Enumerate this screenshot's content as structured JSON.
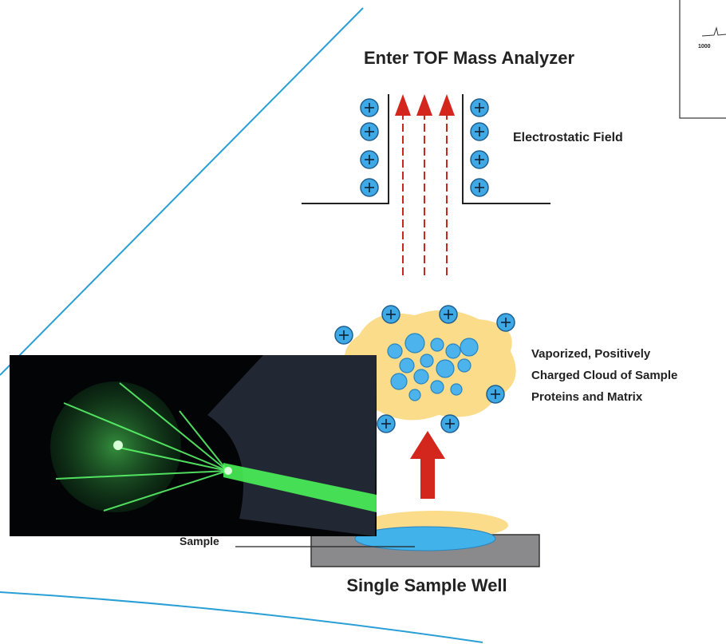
{
  "diagram": {
    "title": "Enter TOF Mass Analyzer",
    "labels": {
      "field": "Electrostatic Field",
      "cloud": [
        "Vaporized, Positively",
        "Charged Cloud of Sample",
        "Proteins and Matrix"
      ],
      "sample": "Sample",
      "well": "Single Sample Well"
    },
    "inset_chart": {
      "tick": 1000
    }
  }
}
